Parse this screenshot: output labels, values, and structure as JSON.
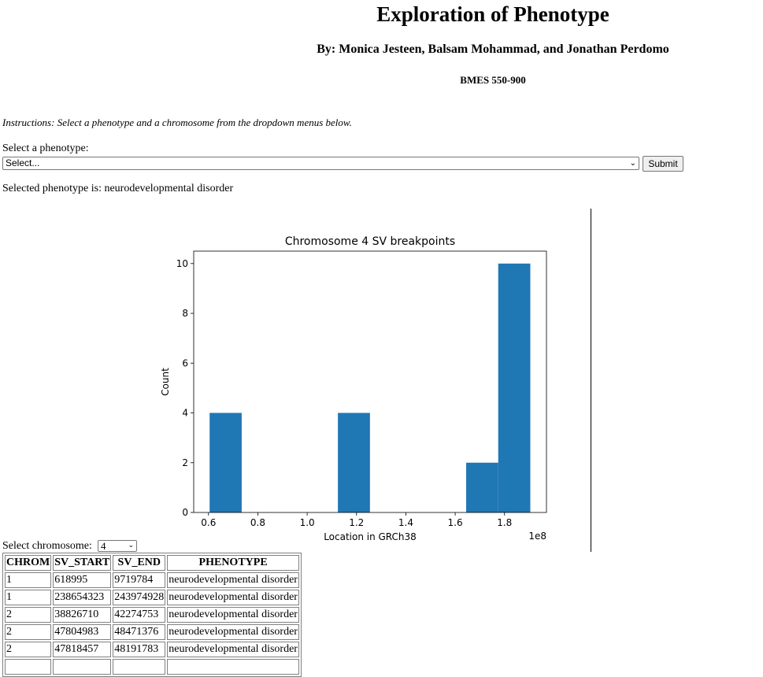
{
  "header": {
    "title": "Exploration of Phenotype",
    "authors": "By: Monica Jesteen, Balsam Mohammad, and Jonathan Perdomo",
    "course": "BMES 550-900"
  },
  "instructions": "Instructions: Select a phenotype and a chromosome from the dropdown menus below.",
  "phenotype_form": {
    "label": "Select a phenotype:",
    "selected_value": "Select...",
    "submit_label": "Submit"
  },
  "selected_phenotype_text": "Selected phenotype is: neurodevelopmental disorder",
  "chromosome_form": {
    "label": "Select chromosome:",
    "selected_value": "4"
  },
  "icons": {
    "dropdown": "chevron-down-icon"
  },
  "chart_data": {
    "type": "bar",
    "title": "Chromosome 4 SV breakpoints",
    "xlabel": "Location in GRCh38",
    "ylabel": "Count",
    "x_offset_label": "1e8",
    "bin_edges": [
      0.6045,
      0.7345,
      0.8645,
      0.9945,
      1.1245,
      1.2545,
      1.3845,
      1.5145,
      1.6445,
      1.7745,
      1.9045
    ],
    "values": [
      4,
      0,
      0,
      0,
      4,
      0,
      0,
      0,
      2,
      10
    ],
    "xticks": [
      0.6,
      0.8,
      1.0,
      1.2,
      1.4,
      1.6,
      1.8
    ],
    "xtick_labels": [
      "0.6",
      "0.8",
      "1.0",
      "1.2",
      "1.4",
      "1.6",
      "1.8"
    ],
    "yticks": [
      0,
      2,
      4,
      6,
      8,
      10
    ],
    "ytick_labels": [
      "0",
      "2",
      "4",
      "6",
      "8",
      "10"
    ],
    "xlim": [
      0.54,
      1.97
    ],
    "ylim": [
      0,
      10.5
    ],
    "bar_color": "#1f77b4"
  },
  "table": {
    "columns": [
      "CHROM",
      "SV_START",
      "SV_END",
      "PHENOTYPE"
    ],
    "rows": [
      [
        "1",
        "618995",
        "9719784",
        "neurodevelopmental disorder"
      ],
      [
        "1",
        "238654323",
        "243974928",
        "neurodevelopmental disorder"
      ],
      [
        "2",
        "38826710",
        "42274753",
        "neurodevelopmental disorder"
      ],
      [
        "2",
        "47804983",
        "48471376",
        "neurodevelopmental disorder"
      ],
      [
        "2",
        "47818457",
        "48191783",
        "neurodevelopmental disorder"
      ],
      [
        "",
        "",
        "",
        ""
      ]
    ]
  }
}
